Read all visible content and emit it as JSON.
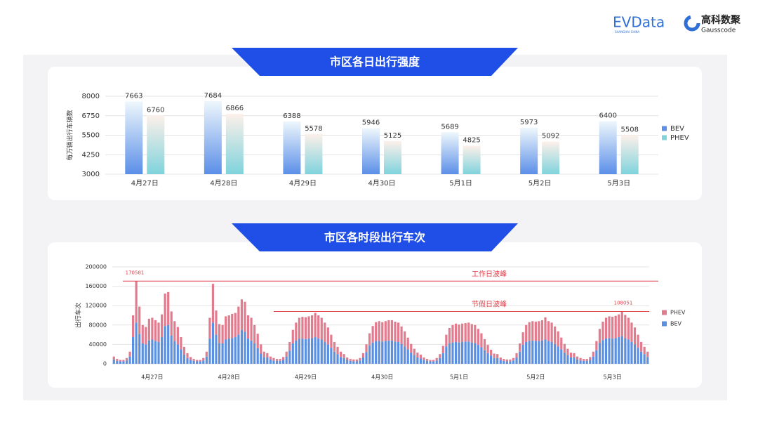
{
  "header": {
    "brand1": "EVData",
    "brand1_sub": "SHANGHAI CHINA",
    "brand2": "高科数聚",
    "brand2_sub": "Gausscode"
  },
  "chart_data": [
    {
      "type": "bar",
      "title": "市区各日出行强度",
      "y_label": "每万辆出行车辆数",
      "categories": [
        "4月27日",
        "4月28日",
        "4月29日",
        "4月30日",
        "5月1日",
        "5月2日",
        "5月3日"
      ],
      "series": [
        {
          "name": "BEV",
          "color": "#5b8fe8",
          "values": [
            7663,
            7684,
            6388,
            5946,
            5689,
            5973,
            6400
          ]
        },
        {
          "name": "PHEV",
          "color": "#7fd3dc",
          "values": [
            6760,
            6866,
            5578,
            5125,
            4825,
            5092,
            5508
          ]
        }
      ],
      "ylim": [
        3000,
        8000
      ],
      "yticks": [
        3000,
        4250,
        5500,
        6750,
        8000
      ],
      "grid": true
    },
    {
      "type": "stacked",
      "title": "市区各时段出行车次",
      "y_label": "出行车次",
      "categories": [
        null,
        null,
        null,
        null,
        null,
        null,
        null,
        null,
        null,
        null,
        null,
        null,
        "4月27日",
        null,
        null,
        null,
        null,
        null,
        null,
        null,
        null,
        null,
        null,
        null,
        null,
        null,
        null,
        null,
        null,
        null,
        null,
        null,
        null,
        null,
        null,
        null,
        "4月28日",
        null,
        null,
        null,
        null,
        null,
        null,
        null,
        null,
        null,
        null,
        null,
        null,
        null,
        null,
        null,
        null,
        null,
        null,
        null,
        null,
        null,
        null,
        null,
        "4月29日",
        null,
        null,
        null,
        null,
        null,
        null,
        null,
        null,
        null,
        null,
        null,
        null,
        null,
        null,
        null,
        null,
        null,
        null,
        null,
        null,
        null,
        null,
        null,
        "4月30日",
        null,
        null,
        null,
        null,
        null,
        null,
        null,
        null,
        null,
        null,
        null,
        null,
        null,
        null,
        null,
        null,
        null,
        null,
        null,
        null,
        null,
        null,
        null,
        "5月1日",
        null,
        null,
        null,
        null,
        null,
        null,
        null,
        null,
        null,
        null,
        null,
        null,
        null,
        null,
        null,
        null,
        null,
        null,
        null,
        null,
        null,
        null,
        null,
        "5月2日",
        null,
        null,
        null,
        null,
        null,
        null,
        null,
        null,
        null,
        null,
        null,
        null,
        null,
        null,
        null,
        null,
        null,
        null,
        null,
        null,
        null,
        null,
        null,
        "5月3日",
        null,
        null,
        null,
        null,
        null,
        null,
        null,
        null,
        null,
        null,
        null
      ],
      "series": [
        {
          "name": "BEV",
          "color": "#5b8fe0",
          "values": [
            9000,
            6000,
            5000,
            5000,
            7000,
            15000,
            55000,
            85000,
            62000,
            42000,
            40000,
            48000,
            50000,
            47000,
            45000,
            55000,
            78000,
            80000,
            58000,
            47000,
            40000,
            30000,
            19000,
            12000,
            8000,
            6000,
            5000,
            5000,
            7000,
            15000,
            52000,
            85000,
            60000,
            43000,
            42000,
            50000,
            52000,
            53000,
            55000,
            60000,
            70000,
            66000,
            52000,
            48000,
            42000,
            32000,
            21000,
            14000,
            13000,
            9000,
            7000,
            6000,
            6000,
            8000,
            15000,
            27000,
            42000,
            48000,
            52000,
            52000,
            51000,
            52000,
            53000,
            55000,
            52000,
            50000,
            45000,
            40000,
            33000,
            25000,
            20000,
            14000,
            12000,
            8000,
            6000,
            5000,
            5000,
            7000,
            13000,
            24000,
            38000,
            44000,
            47000,
            47000,
            46000,
            47000,
            48000,
            48000,
            46000,
            45000,
            41000,
            36000,
            30000,
            23000,
            18000,
            13000,
            11000,
            8000,
            6000,
            5000,
            5000,
            7000,
            12000,
            22000,
            36000,
            42000,
            44000,
            45000,
            44000,
            45000,
            46000,
            46000,
            44000,
            43000,
            39000,
            34000,
            28000,
            22000,
            17000,
            12000,
            12000,
            8000,
            6000,
            5000,
            5000,
            7000,
            13000,
            25000,
            39000,
            45000,
            47000,
            48000,
            47000,
            47000,
            48000,
            50000,
            47000,
            45000,
            41000,
            36000,
            30000,
            23000,
            18000,
            13000,
            13000,
            9000,
            7000,
            6000,
            6000,
            8000,
            15000,
            28000,
            43000,
            49000,
            52000,
            53000,
            52000,
            53000,
            55000,
            57000,
            53000,
            50000,
            45000,
            40000,
            33000,
            25000,
            20000,
            14000
          ]
        },
        {
          "name": "PHEV",
          "color": "#e27b8d",
          "values": [
            6000,
            4000,
            3000,
            3000,
            5000,
            10000,
            45000,
            85581,
            56000,
            38000,
            36000,
            45000,
            45000,
            43000,
            40000,
            47000,
            67000,
            68000,
            50000,
            41000,
            36000,
            25000,
            16000,
            10000,
            6000,
            4000,
            3000,
            3000,
            5000,
            10000,
            43000,
            80000,
            50000,
            39000,
            38000,
            48000,
            48000,
            50000,
            50000,
            58000,
            63000,
            62000,
            48000,
            47000,
            38000,
            30000,
            19000,
            11000,
            9000,
            6000,
            5000,
            4000,
            4000,
            6000,
            10000,
            18000,
            28000,
            37000,
            43000,
            45000,
            45000,
            46000,
            47000,
            50000,
            48000,
            45000,
            40000,
            35000,
            27000,
            20000,
            15000,
            11000,
            8000,
            5000,
            4000,
            4000,
            4000,
            5000,
            9000,
            16000,
            25000,
            34000,
            39000,
            41000,
            40000,
            41000,
            42000,
            42000,
            41000,
            40000,
            36000,
            31000,
            24000,
            18000,
            13000,
            10000,
            8000,
            5000,
            4000,
            3000,
            3000,
            5000,
            8000,
            15000,
            24000,
            32000,
            36000,
            38000,
            37000,
            38000,
            38000,
            39000,
            38000,
            37000,
            33000,
            29000,
            23000,
            17000,
            12000,
            9000,
            8000,
            5000,
            4000,
            4000,
            4000,
            5000,
            9000,
            17000,
            26000,
            35000,
            39000,
            40000,
            40000,
            41000,
            42000,
            46000,
            41000,
            40000,
            36000,
            31000,
            24000,
            18000,
            13000,
            10000,
            9000,
            6000,
            5000,
            4000,
            4000,
            6000,
            10000,
            19000,
            29000,
            38000,
            43000,
            45000,
            45000,
            46000,
            47000,
            51051,
            48000,
            45000,
            40000,
            35000,
            27000,
            20000,
            15000,
            11000
          ]
        }
      ],
      "ylim": [
        0,
        200000
      ],
      "yticks": [
        0,
        40000,
        80000,
        120000,
        160000,
        200000
      ],
      "grid": true,
      "ref_lines": [
        {
          "value": 170581,
          "label": "工作日波峰",
          "color": "#e0404a"
        },
        {
          "value": 108051,
          "label": "节假日波峰",
          "color": "#e0404a"
        }
      ]
    }
  ]
}
